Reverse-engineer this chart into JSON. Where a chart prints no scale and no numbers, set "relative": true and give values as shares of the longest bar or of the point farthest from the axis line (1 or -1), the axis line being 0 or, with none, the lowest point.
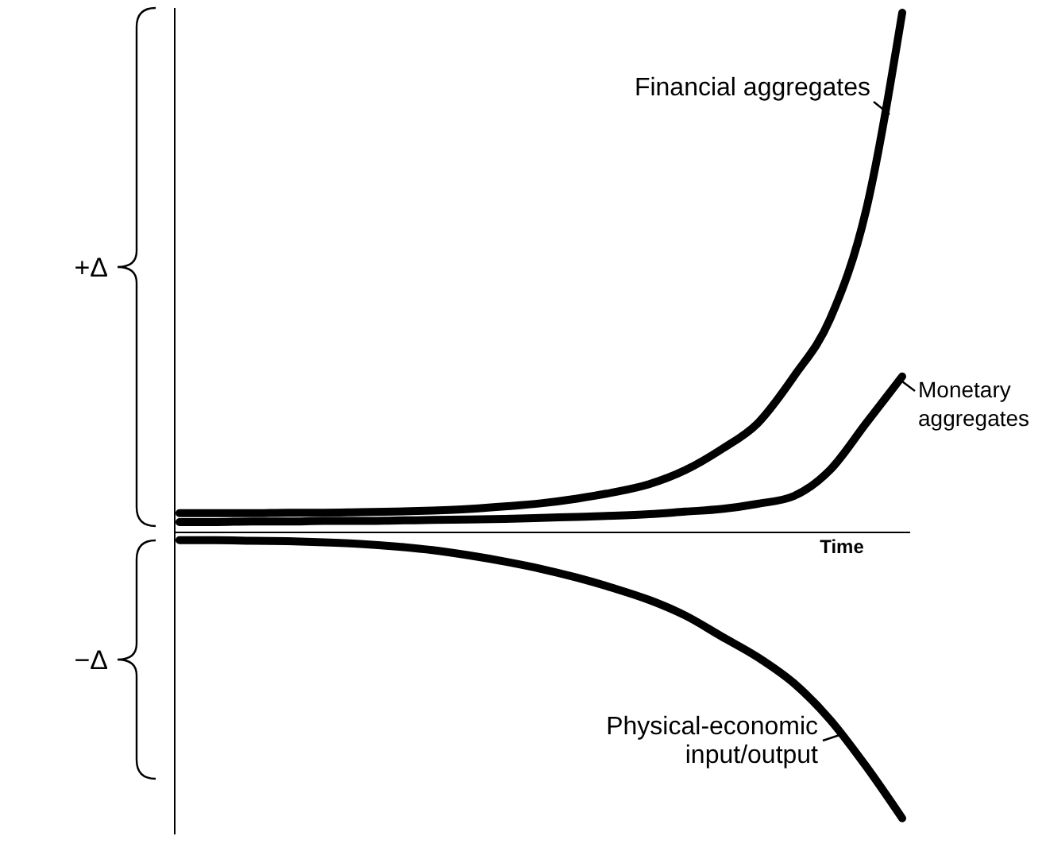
{
  "chart_data": {
    "type": "line",
    "relative": true,
    "xlabel": "Time",
    "categories": [
      null,
      null,
      null,
      null,
      null,
      null,
      null,
      null,
      null,
      null,
      null,
      null,
      null,
      null,
      null,
      null,
      null,
      null,
      null,
      null,
      null
    ],
    "series": [
      {
        "name": "Financial aggregates",
        "color": "#000000",
        "values": [
          0.037,
          0.037,
          0.037,
          0.038,
          0.038,
          0.039,
          0.04,
          0.042,
          0.045,
          0.05,
          0.056,
          0.065,
          0.077,
          0.093,
          0.12,
          0.16,
          0.21,
          0.3,
          0.41,
          0.62,
          1.0
        ]
      },
      {
        "name": "Monetary aggregates",
        "color": "#000000",
        "values": [
          0.02,
          0.02,
          0.021,
          0.021,
          0.022,
          0.022,
          0.023,
          0.024,
          0.025,
          0.026,
          0.028,
          0.03,
          0.032,
          0.035,
          0.04,
          0.045,
          0.055,
          0.07,
          0.12,
          0.21,
          0.3
        ]
      },
      {
        "name": "Physical-economic input/output",
        "color": "#000000",
        "values": [
          -0.015,
          -0.015,
          -0.016,
          -0.017,
          -0.019,
          -0.022,
          -0.027,
          -0.034,
          -0.044,
          -0.056,
          -0.07,
          -0.087,
          -0.107,
          -0.13,
          -0.16,
          -0.2,
          -0.24,
          -0.29,
          -0.36,
          -0.45,
          -0.55
        ]
      }
    ],
    "annotations": [
      "+Δ",
      "−Δ"
    ],
    "marker": "none",
    "line_style": "solid",
    "grid": false
  }
}
